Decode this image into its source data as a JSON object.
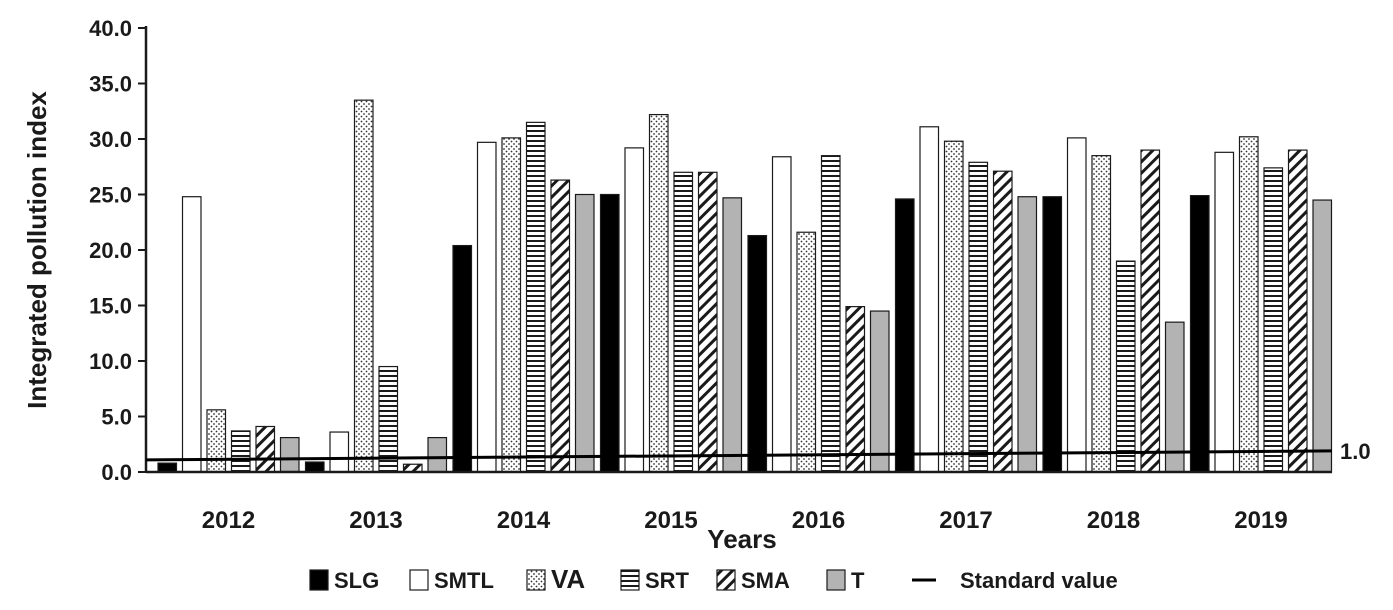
{
  "chart_data": {
    "type": "bar",
    "title": "",
    "xlabel": "Years",
    "ylabel": "Integrated pollution index",
    "ylim": [
      0,
      40
    ],
    "yticks": [
      "0.0",
      "5.0",
      "10.0",
      "15.0",
      "20.0",
      "25.0",
      "30.0",
      "35.0",
      "40.0"
    ],
    "categories": [
      "2012",
      "2013",
      "2014",
      "2015",
      "2016",
      "2017",
      "2018",
      "2019"
    ],
    "series": [
      {
        "name": "SLG",
        "pattern": "solid-black",
        "values": [
          0.8,
          0.9,
          20.4,
          25.0,
          21.3,
          24.6,
          24.8,
          24.9
        ]
      },
      {
        "name": "SMTL",
        "pattern": "white",
        "values": [
          24.8,
          3.6,
          29.7,
          29.2,
          28.4,
          31.1,
          30.1,
          28.8
        ]
      },
      {
        "name": "VA",
        "pattern": "dots",
        "values": [
          5.6,
          33.5,
          30.1,
          32.2,
          21.6,
          29.8,
          28.5,
          30.2
        ]
      },
      {
        "name": "SRT",
        "pattern": "horizontal",
        "values": [
          3.7,
          9.5,
          31.5,
          27.0,
          28.5,
          27.9,
          19.0,
          27.4
        ]
      },
      {
        "name": "SMA",
        "pattern": "diagonal",
        "values": [
          4.1,
          0.7,
          26.3,
          27.0,
          14.9,
          27.1,
          29.0,
          29.0
        ]
      },
      {
        "name": "T",
        "pattern": "gray",
        "values": [
          3.1,
          3.1,
          25.0,
          24.7,
          14.5,
          24.8,
          13.5,
          24.5
        ]
      }
    ],
    "reference_line": {
      "name": "Standard value",
      "label": "1.0",
      "value": 1.0
    },
    "legend": [
      "SLG",
      "SMTL",
      "VA",
      "SRT",
      "SMA",
      "T",
      "Standard value"
    ],
    "legend_position": "bottom",
    "grid": false
  },
  "colors": {
    "solid": "#000000",
    "white": "#ffffff",
    "gray": "#b3b3b3",
    "stroke": "#1a1a1a"
  }
}
